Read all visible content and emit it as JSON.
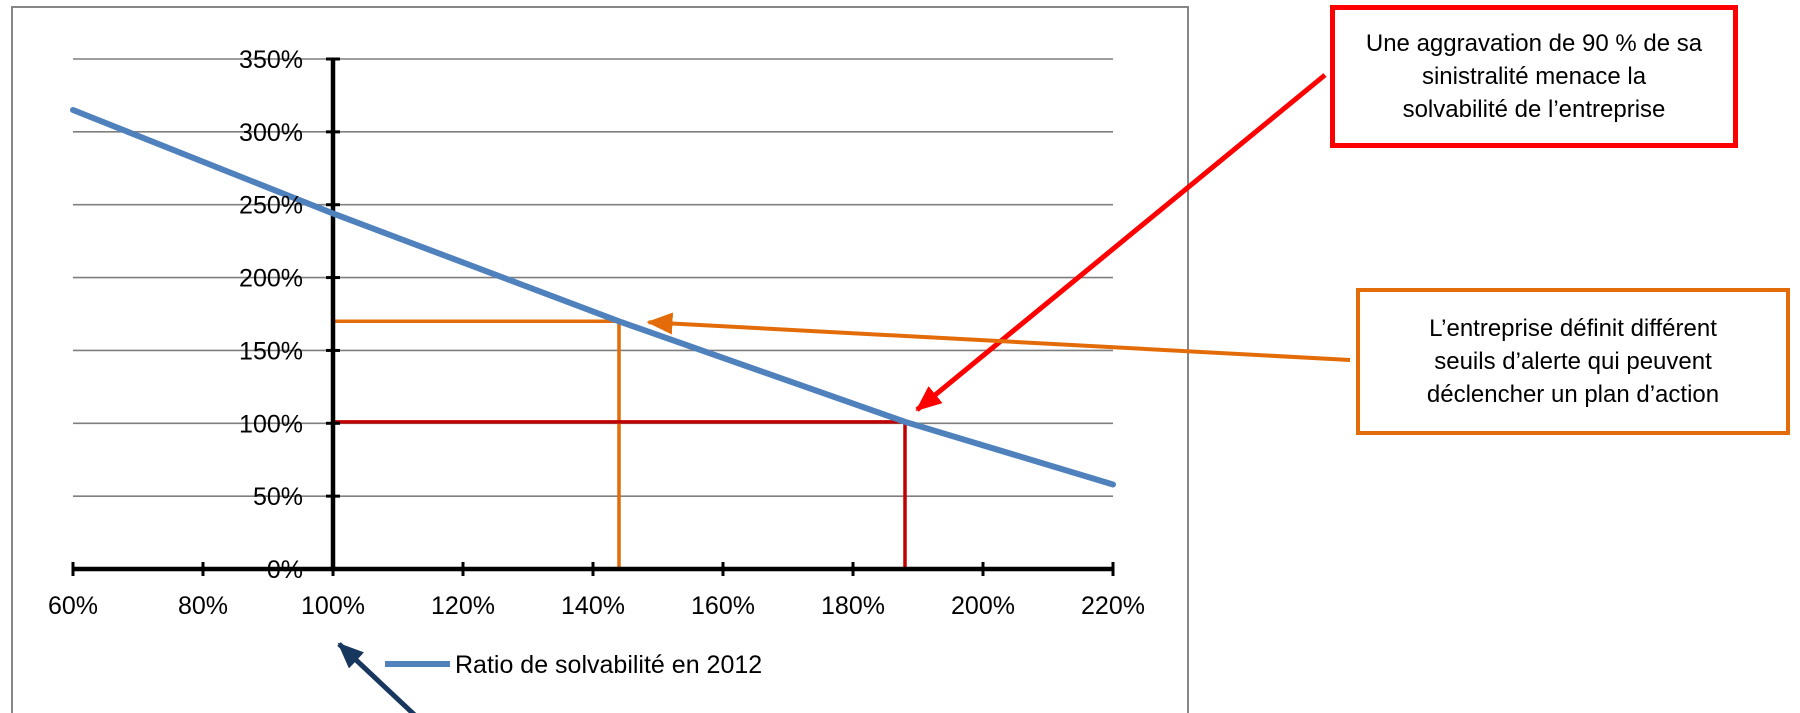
{
  "chart_data": {
    "type": "line",
    "title": "",
    "xlabel": "",
    "ylabel": "",
    "x_ticks": [
      "60%",
      "80%",
      "100%",
      "120%",
      "140%",
      "160%",
      "180%",
      "200%",
      "220%"
    ],
    "y_ticks": [
      "0%",
      "50%",
      "100%",
      "150%",
      "200%",
      "250%",
      "300%",
      "350%"
    ],
    "xlim": [
      60,
      220
    ],
    "ylim": [
      0,
      350
    ],
    "x_unit": "%",
    "y_unit": "%",
    "grid": "horizontal",
    "legend_position": "bottom",
    "series": [
      {
        "name": "Ratio de solvabilité en 2012",
        "color": "#4f81bd",
        "x": [
          60,
          100,
          144,
          188,
          220
        ],
        "y": [
          315,
          244,
          170,
          101,
          58
        ]
      }
    ],
    "threshold_lines": [
      {
        "color": "#e36c09",
        "x": 144,
        "y": 170
      },
      {
        "color": "#c00000",
        "x": 188,
        "y": 101
      }
    ],
    "annotations": [
      {
        "id": "red",
        "border_color": "#ff0000",
        "arrow_color": "#ff0000",
        "lines": [
          "Une aggravation de 90 % de sa",
          "sinistralité menace la",
          "solvabilité de l’entreprise"
        ],
        "points_to": {
          "x": 188,
          "y": 101
        }
      },
      {
        "id": "orange",
        "border_color": "#e36c09",
        "arrow_color": "#e36c09",
        "lines": [
          "L’entreprise définit différent",
          "seuils d’alerte qui peuvent",
          "déclencher un plan d’action"
        ],
        "points_to": {
          "x": 147,
          "y": 168
        }
      }
    ],
    "extra_arrow": {
      "color": "#17375e",
      "points_to_tick": "100%"
    },
    "colors": {
      "axis": "#000000",
      "grid": "#7f7f7f",
      "frame": "#868686"
    }
  }
}
